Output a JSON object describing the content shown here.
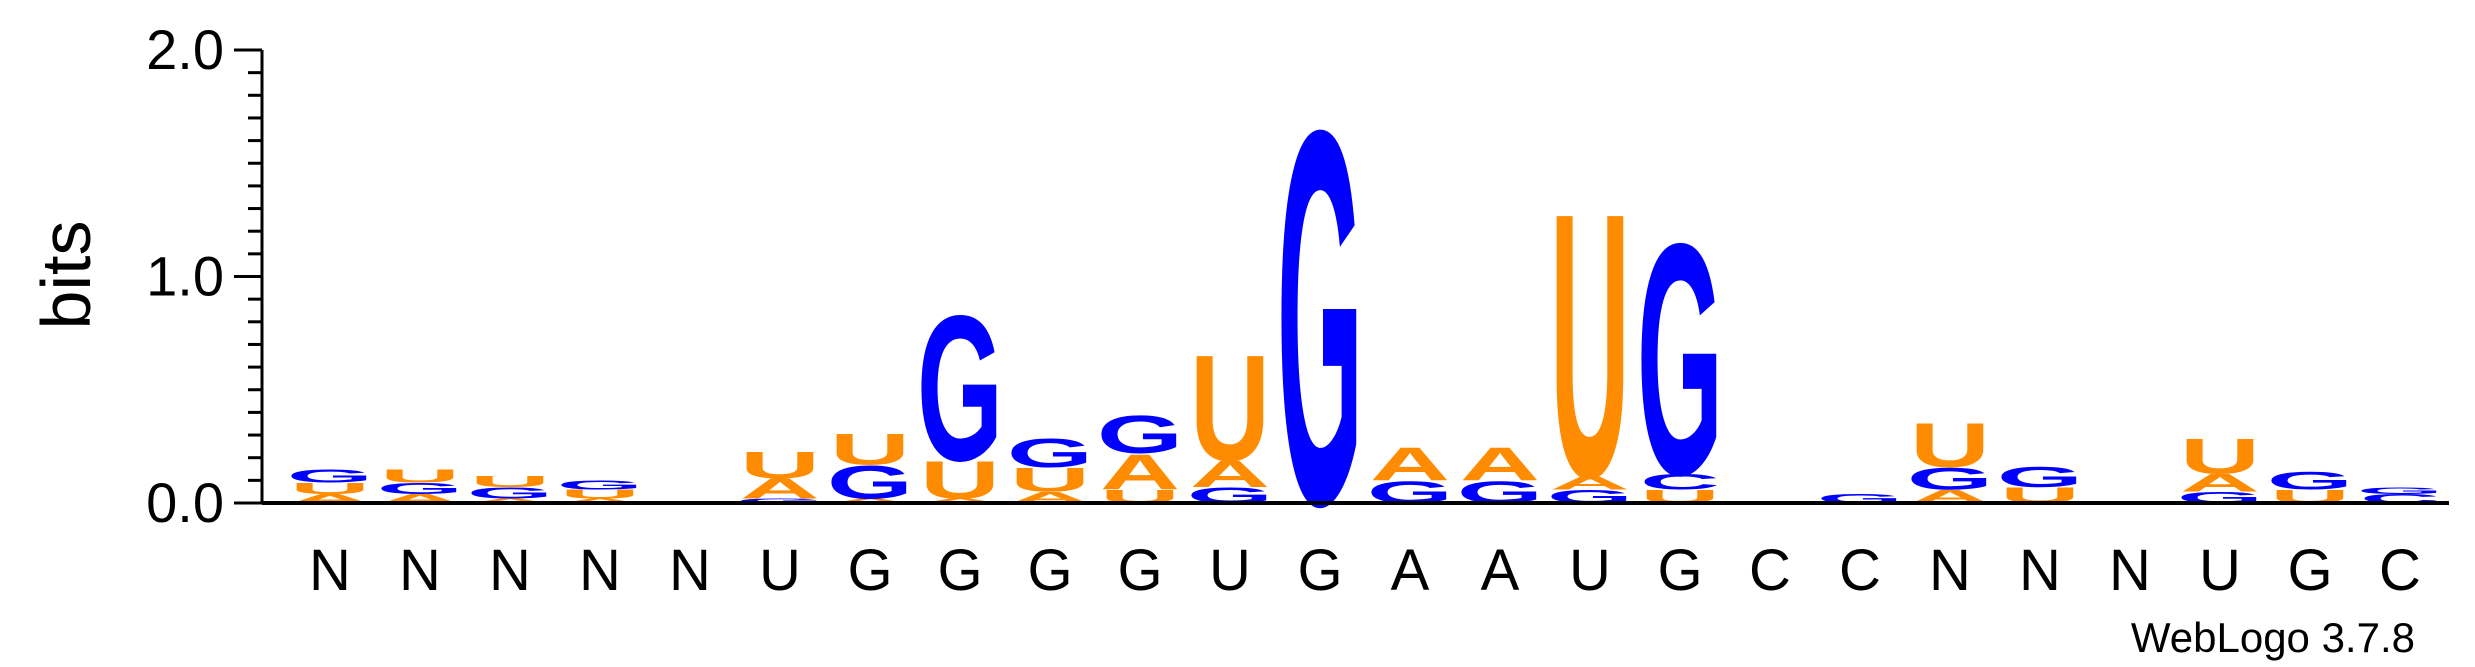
{
  "chart_data": {
    "type": "sequence-logo",
    "ylabel": "bits",
    "ylim": [
      0,
      2
    ],
    "yticks": [
      {
        "value": 0,
        "label": "0.0"
      },
      {
        "value": 1,
        "label": "1.0"
      },
      {
        "value": 2,
        "label": "2.0"
      }
    ],
    "consensus": [
      "N",
      "N",
      "N",
      "N",
      "N",
      "U",
      "G",
      "G",
      "G",
      "G",
      "U",
      "G",
      "A",
      "A",
      "U",
      "G",
      "C",
      "C",
      "N",
      "N",
      "N",
      "U",
      "G",
      "C"
    ],
    "colors": {
      "A": "#ff8c00",
      "U": "#ff8c00",
      "G": "#0000ff",
      "C": "#0000ff"
    },
    "stacks": [
      [
        {
          "letter": "A",
          "bits": 0.04
        },
        {
          "letter": "U",
          "bits": 0.05
        },
        {
          "letter": "G",
          "bits": 0.06
        }
      ],
      [
        {
          "letter": "A",
          "bits": 0.04
        },
        {
          "letter": "G",
          "bits": 0.05
        },
        {
          "letter": "U",
          "bits": 0.06
        }
      ],
      [
        {
          "letter": "A",
          "bits": 0.02
        },
        {
          "letter": "G",
          "bits": 0.05
        },
        {
          "letter": "U",
          "bits": 0.05
        }
      ],
      [
        {
          "letter": "A",
          "bits": 0.02
        },
        {
          "letter": "U",
          "bits": 0.04
        },
        {
          "letter": "G",
          "bits": 0.04
        }
      ],
      [],
      [
        {
          "letter": "G",
          "bits": 0.02
        },
        {
          "letter": "A",
          "bits": 0.09
        },
        {
          "letter": "U",
          "bits": 0.12
        }
      ],
      [
        {
          "letter": "A",
          "bits": 0.02
        },
        {
          "letter": "G",
          "bits": 0.15
        },
        {
          "letter": "U",
          "bits": 0.14
        }
      ],
      [
        {
          "letter": "A",
          "bits": 0.02
        },
        {
          "letter": "U",
          "bits": 0.17
        },
        {
          "letter": "G",
          "bits": 0.66
        }
      ],
      [
        {
          "letter": "A",
          "bits": 0.05
        },
        {
          "letter": "U",
          "bits": 0.11
        },
        {
          "letter": "G",
          "bits": 0.13
        }
      ],
      [
        {
          "letter": "U",
          "bits": 0.06
        },
        {
          "letter": "A",
          "bits": 0.16
        },
        {
          "letter": "G",
          "bits": 0.17
        }
      ],
      [
        {
          "letter": "G",
          "bits": 0.07
        },
        {
          "letter": "A",
          "bits": 0.12
        },
        {
          "letter": "U",
          "bits": 0.48
        }
      ],
      [
        {
          "letter": "G",
          "bits": 1.7
        }
      ],
      [
        {
          "letter": "G",
          "bits": 0.1
        },
        {
          "letter": "A",
          "bits": 0.15
        }
      ],
      [
        {
          "letter": "G",
          "bits": 0.1
        },
        {
          "letter": "A",
          "bits": 0.15
        }
      ],
      [
        {
          "letter": "G",
          "bits": 0.06
        },
        {
          "letter": "A",
          "bits": 0.06
        },
        {
          "letter": "U",
          "bits": 1.2
        }
      ],
      [
        {
          "letter": "U",
          "bits": 0.06
        },
        {
          "letter": "C",
          "bits": 0.07
        },
        {
          "letter": "G",
          "bits": 1.05
        }
      ],
      [],
      [
        {
          "letter": "G",
          "bits": 0.04
        }
      ],
      [
        {
          "letter": "A",
          "bits": 0.06
        },
        {
          "letter": "G",
          "bits": 0.1
        },
        {
          "letter": "U",
          "bits": 0.2
        }
      ],
      [
        {
          "letter": "U",
          "bits": 0.07
        },
        {
          "letter": "G",
          "bits": 0.09
        }
      ],
      [],
      [
        {
          "letter": "G",
          "bits": 0.05
        },
        {
          "letter": "A",
          "bits": 0.08
        },
        {
          "letter": "U",
          "bits": 0.16
        }
      ],
      [
        {
          "letter": "U",
          "bits": 0.06
        },
        {
          "letter": "G",
          "bits": 0.08
        }
      ],
      [
        {
          "letter": "C",
          "bits": 0.04
        },
        {
          "letter": "G",
          "bits": 0.03
        }
      ]
    ]
  },
  "footer": "WebLogo 3.7.8"
}
